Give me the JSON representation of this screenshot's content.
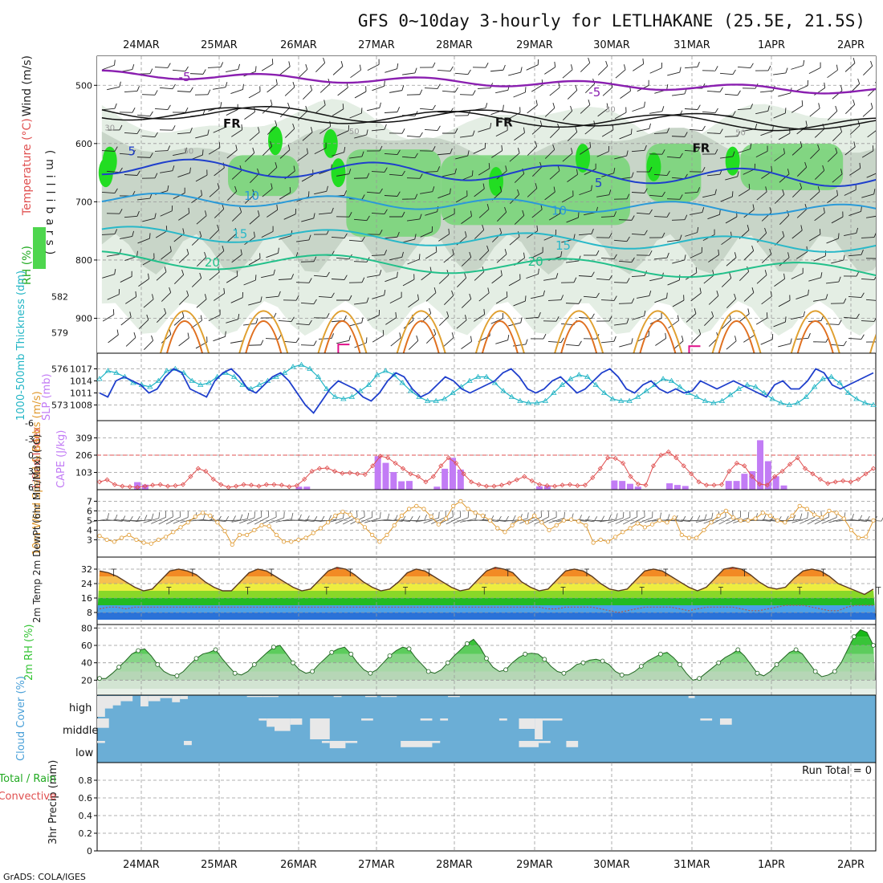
{
  "title": "GFS 0~10day 3-hourly for LETLHAKANE (25.5E, 21.5S)",
  "credit": "GrADS: COLA/IGES",
  "dates": [
    "24MAR",
    "25MAR",
    "26MAR",
    "27MAR",
    "28MAR",
    "29MAR",
    "30MAR",
    "31MAR",
    "1APR",
    "2APR"
  ],
  "colors": {
    "rh_green": "#22cc22",
    "wind_barb": "#222222",
    "slp": "#1f3fcc",
    "thickness": "#22b5c5",
    "lifted": "#e05050",
    "cape": "#c27cf5",
    "wind10": "#e09a30",
    "rh2m": "#35c435",
    "cloud_bg": "#6baed6",
    "cloud_bar": "#e8e8e8"
  },
  "chart_data": [
    {
      "panel": "upper-air",
      "type": "heatmap",
      "ylabel": "(millibars)",
      "y_ticks": [
        500,
        600,
        700,
        800,
        900
      ],
      "ylim": [
        960,
        450
      ],
      "legend_labels": [
        "Wind (m/s)",
        "Temperature (°C)",
        "RH (%)"
      ],
      "isotherm_labels": [
        {
          "label": "-5",
          "x": 1.55,
          "p": 486
        },
        {
          "label": "-5",
          "x": 6.75,
          "p": 512
        },
        {
          "label": "FR",
          "x": 2.15,
          "p": 566
        },
        {
          "label": "FR",
          "x": 5.6,
          "p": 564
        },
        {
          "label": "FR",
          "x": 8.1,
          "p": 608
        },
        {
          "label": "5",
          "x": 0.88,
          "p": 613
        },
        {
          "label": "5",
          "x": 6.8,
          "p": 668
        },
        {
          "label": "10",
          "x": 2.4,
          "p": 690
        },
        {
          "label": "10",
          "x": 6.3,
          "p": 715
        },
        {
          "label": "15",
          "x": 2.25,
          "p": 755
        },
        {
          "label": "15",
          "x": 6.35,
          "p": 775
        },
        {
          "label": "20",
          "x": 1.9,
          "p": 804
        },
        {
          "label": "20",
          "x": 6.0,
          "p": 803
        }
      ],
      "rh_contour_labels": [
        {
          "label": "30",
          "x": 0.6,
          "p": 572
        },
        {
          "label": "50",
          "x": 1.6,
          "p": 612
        },
        {
          "label": "50",
          "x": 3.7,
          "p": 578
        },
        {
          "label": "30",
          "x": 6.95,
          "p": 540
        },
        {
          "label": "50",
          "x": 8.6,
          "p": 580
        }
      ]
    },
    {
      "panel": "thickness-slp",
      "type": "line",
      "ylabel_left": "1000-500mb Thickness (dm)",
      "ylabel_right": "SLP (mb)",
      "y_ticks_left": [
        573,
        576,
        579,
        582
      ],
      "y_ticks_right": [
        1008,
        1011,
        1014,
        1017
      ],
      "series": [
        {
          "name": "1000-500mb Thickness (dm)",
          "values": [
            1014.5,
            1016.5,
            1016,
            1015,
            1013.5,
            1013,
            1012.5,
            1014,
            1016.5,
            1017,
            1016,
            1014,
            1013,
            1013.5,
            1015,
            1016,
            1015,
            1013,
            1012,
            1013,
            1014,
            1015,
            1016,
            1017.5,
            1018,
            1017,
            1015,
            1012,
            1010,
            1009.5,
            1010,
            1011.5,
            1013,
            1015.5,
            1016.5,
            1015.5,
            1013.5,
            1011.5,
            1010,
            1009,
            1009,
            1009.5,
            1011,
            1012.5,
            1014,
            1015,
            1015,
            1013.5,
            1011.5,
            1010,
            1009,
            1008.5,
            1008.5,
            1009,
            1011,
            1013,
            1014.5,
            1015.5,
            1015,
            1013,
            1011,
            1009.5,
            1009,
            1009,
            1010,
            1011.5,
            1013,
            1014.5,
            1014,
            1012.5,
            1011,
            1010,
            1009,
            1008.5,
            1009,
            1010.5,
            1012,
            1013,
            1012.5,
            1011,
            1009.5,
            1008.5,
            1008,
            1008.5,
            1010,
            1012.5,
            1014.5,
            1015,
            1013.5,
            1011,
            1009.5,
            1008.5,
            1008
          ]
        },
        {
          "name": "SLP (mb)",
          "values": [
            1011,
            1010,
            1014,
            1015,
            1014,
            1013,
            1011,
            1012,
            1015,
            1017,
            1016,
            1012,
            1011,
            1010,
            1014,
            1016,
            1017,
            1015,
            1012,
            1011,
            1013,
            1015,
            1016,
            1014,
            1011,
            1008,
            1006,
            1009,
            1012,
            1014,
            1013,
            1012,
            1010,
            1009,
            1011,
            1014,
            1016,
            1015,
            1012,
            1010,
            1011,
            1013,
            1015,
            1014,
            1012,
            1011,
            1012,
            1013,
            1014,
            1016,
            1017,
            1015,
            1012,
            1011,
            1012,
            1014,
            1015,
            1013,
            1011,
            1012,
            1014,
            1016,
            1017,
            1015,
            1012,
            1011,
            1013,
            1014,
            1012,
            1011,
            1012,
            1011,
            1011.5,
            1014,
            1013,
            1012,
            1013,
            1014,
            1013,
            1012,
            1011,
            1010,
            1013,
            1014,
            1012,
            1012,
            1014,
            1017,
            1016,
            1013,
            1012,
            1013,
            1014,
            1015,
            1016
          ]
        }
      ]
    },
    {
      "panel": "lifted-cape",
      "type": "bar",
      "ylabel_left": "Lifted Index",
      "ylabel_right": "CAPE (J/kg)",
      "y_ticks_left": [
        "-6",
        "-3",
        "0",
        "3",
        "6"
      ],
      "y_ticks_right": [
        "103",
        "206",
        "309"
      ],
      "lifted_index": [
        5,
        4.6,
        5.5,
        5.8,
        5.9,
        6,
        5.8,
        5.6,
        5.5,
        5.8,
        5.7,
        5.5,
        4,
        2.5,
        3,
        4.5,
        5.5,
        6,
        5.8,
        5.5,
        5.6,
        5.8,
        5.5,
        5.5,
        5.6,
        5.9,
        5.7,
        4.5,
        3,
        2.5,
        2.4,
        3,
        3.4,
        3.3,
        3.5,
        3.6,
        2,
        0.2,
        0.5,
        1.5,
        2.5,
        3.5,
        4,
        5,
        4,
        2,
        0.5,
        1.5,
        3.5,
        5,
        5.5,
        5.8,
        5.8,
        5.6,
        5.2,
        4.6,
        4,
        4.8,
        5.5,
        5.7,
        5.8,
        5.6,
        5.5,
        5.7,
        5.6,
        4.2,
        2.5,
        0.5,
        0.6,
        1.5,
        4,
        5.4,
        5.6,
        2,
        0,
        -0.6,
        0.5,
        2,
        3.5,
        5,
        5.6,
        5.6,
        5.5,
        3,
        1.5,
        2,
        4,
        5.4,
        5.6,
        4,
        3,
        1.7,
        0.5,
        2.5,
        3.5,
        4.5,
        5.3,
        5,
        4.8,
        5,
        4.5,
        3.5,
        2.5
      ],
      "cape": [
        {
          "x": 0.45,
          "v": 45
        },
        {
          "x": 0.55,
          "v": 30
        },
        {
          "x": 2.5,
          "v": 18
        },
        {
          "x": 2.6,
          "v": 18
        },
        {
          "x": 3.5,
          "v": 200
        },
        {
          "x": 3.6,
          "v": 160
        },
        {
          "x": 3.7,
          "v": 105
        },
        {
          "x": 3.8,
          "v": 50
        },
        {
          "x": 3.9,
          "v": 52
        },
        {
          "x": 4.25,
          "v": 18
        },
        {
          "x": 4.35,
          "v": 125
        },
        {
          "x": 4.45,
          "v": 190
        },
        {
          "x": 4.55,
          "v": 120
        },
        {
          "x": 5.55,
          "v": 20
        },
        {
          "x": 5.65,
          "v": 22
        },
        {
          "x": 6.5,
          "v": 55
        },
        {
          "x": 6.6,
          "v": 52
        },
        {
          "x": 6.7,
          "v": 35
        },
        {
          "x": 6.8,
          "v": 18
        },
        {
          "x": 7.2,
          "v": 38
        },
        {
          "x": 7.3,
          "v": 28
        },
        {
          "x": 7.4,
          "v": 22
        },
        {
          "x": 7.95,
          "v": 52
        },
        {
          "x": 8.05,
          "v": 52
        },
        {
          "x": 8.15,
          "v": 95
        },
        {
          "x": 8.25,
          "v": 110
        },
        {
          "x": 8.35,
          "v": 295
        },
        {
          "x": 8.45,
          "v": 170
        },
        {
          "x": 8.55,
          "v": 80
        },
        {
          "x": 8.65,
          "v": 25
        }
      ]
    },
    {
      "panel": "wind10m",
      "type": "line",
      "ylabel": "10m Wind Speed & Barbs (m/s)",
      "y_ticks": [
        3,
        4,
        5,
        6,
        7
      ],
      "values": [
        3.4,
        3,
        2.8,
        3.2,
        3.5,
        3,
        2.7,
        2.6,
        3,
        3.3,
        3.8,
        4.3,
        4.8,
        5.4,
        5.8,
        5.5,
        4.8,
        3.9,
        2.5,
        3.5,
        3.5,
        4,
        4.5,
        4.4,
        3.5,
        2.8,
        2.8,
        3,
        3.2,
        3.7,
        4.2,
        4.8,
        5.5,
        5.9,
        5.6,
        5,
        4.3,
        3.5,
        2.8,
        3.5,
        4.5,
        5.5,
        6.2,
        6.5,
        6.2,
        5.4,
        4.6,
        5.2,
        6.5,
        7,
        6.2,
        5.8,
        5.5,
        5,
        4.2,
        3.8,
        4.5,
        5.2,
        4.8,
        5.5,
        4.8,
        4,
        4.5,
        5,
        5.1,
        4.9,
        4.5,
        2.7,
        3,
        2.8,
        3.3,
        3.8,
        4.2,
        4.7,
        4.3,
        4.6,
        5,
        4.8,
        5.3,
        3.5,
        3.2,
        3.2,
        4,
        4.8,
        5.5,
        6,
        5.3,
        5,
        5,
        5.2,
        5.8,
        5.5,
        5,
        4.8,
        5.5,
        6.5,
        6.2,
        5.6,
        5.3,
        6,
        5.8,
        5.2,
        4,
        3.2,
        3.3,
        5
      ]
    },
    {
      "panel": "temp-dewpt",
      "type": "area",
      "ylabel": "2m Temp 2m DewPt (6hr Min/Max) (°C)",
      "y_ticks": [
        8,
        16,
        24,
        32
      ],
      "temperature": [
        31,
        30,
        28,
        25,
        22,
        20,
        21,
        26,
        31,
        32,
        31,
        29,
        25,
        22,
        20,
        20,
        25,
        30,
        32,
        31,
        28,
        25,
        22,
        20,
        21,
        26,
        31,
        33,
        32,
        29,
        25,
        22,
        20,
        21,
        25,
        30,
        32,
        31,
        28,
        25,
        22,
        20,
        21,
        26,
        31,
        33,
        32,
        30,
        25,
        22,
        20,
        21,
        26,
        31,
        32,
        31,
        28,
        24,
        21,
        20,
        21,
        26,
        31,
        32,
        31,
        28,
        25,
        22,
        20,
        22,
        27,
        32,
        33,
        32,
        29,
        25,
        22,
        21,
        22,
        27,
        31,
        32,
        31,
        28,
        24,
        22,
        20,
        18,
        21
      ],
      "dewpoint": [
        10,
        11,
        11,
        10,
        11,
        11,
        11,
        11,
        11,
        11,
        11,
        11,
        11,
        11,
        11,
        11,
        11,
        11,
        11,
        11,
        11,
        11,
        11,
        11,
        11,
        11,
        11,
        11,
        11,
        11,
        11,
        11,
        11,
        11,
        11,
        11,
        11,
        11,
        11,
        11,
        11,
        11,
        11,
        11,
        11,
        11,
        11,
        11,
        11,
        11,
        11,
        10,
        10,
        11,
        11,
        11,
        11,
        10,
        9,
        8,
        9,
        10,
        11,
        11,
        11,
        11,
        10,
        9,
        10,
        11,
        11,
        11,
        11,
        10,
        9,
        9,
        10,
        11,
        12,
        12,
        12,
        11,
        10,
        9,
        9,
        11,
        12,
        12,
        12
      ]
    },
    {
      "panel": "rh2m",
      "type": "area",
      "ylabel": "2m RH (%)",
      "y_ticks": [
        20,
        40,
        60,
        80
      ],
      "values": [
        22,
        22,
        28,
        35,
        42,
        50,
        54,
        56,
        48,
        38,
        30,
        26,
        25,
        30,
        38,
        45,
        50,
        52,
        55,
        45,
        36,
        28,
        26,
        30,
        38,
        45,
        52,
        58,
        60,
        50,
        40,
        32,
        28,
        30,
        38,
        45,
        52,
        56,
        58,
        50,
        40,
        32,
        28,
        32,
        40,
        48,
        54,
        58,
        56,
        46,
        38,
        30,
        28,
        32,
        40,
        48,
        55,
        62,
        67,
        58,
        45,
        35,
        30,
        32,
        40,
        46,
        50,
        51,
        50,
        44,
        36,
        30,
        28,
        32,
        38,
        40,
        43,
        44,
        42,
        38,
        30,
        26,
        26,
        30,
        36,
        42,
        46,
        50,
        52,
        46,
        38,
        28,
        20,
        22,
        28,
        34,
        40,
        46,
        50,
        55,
        48,
        38,
        28,
        25,
        30,
        38,
        45,
        52,
        55,
        50,
        40,
        30,
        24,
        26,
        30,
        40,
        55,
        70,
        78,
        75,
        60
      ]
    },
    {
      "panel": "cloud",
      "type": "bar",
      "ylabel": "Cloud Cover (%)",
      "levels": [
        "high",
        "middle",
        "low"
      ],
      "high": [
        {
          "x0": 0.0,
          "x1": 0.05,
          "v": 90
        },
        {
          "x0": 0.05,
          "x1": 0.15,
          "v": 40
        },
        {
          "x0": 0.15,
          "x1": 0.35,
          "v": 60
        },
        {
          "x0": 0.35,
          "x1": 0.45,
          "v": 100
        },
        {
          "x0": 0.45,
          "x1": 0.5,
          "v": 45
        },
        {
          "x0": 0.5,
          "x1": 0.6,
          "v": 55
        },
        {
          "x0": 0.6,
          "x1": 0.8,
          "v": 45
        },
        {
          "x0": 0.8,
          "x1": 0.95,
          "v": 25
        },
        {
          "x0": 1.05,
          "x1": 1.15,
          "v": 50
        },
        {
          "x0": 1.15,
          "x1": 1.3,
          "v": 25
        },
        {
          "x0": 1.3,
          "x1": 1.45,
          "v": 10
        },
        {
          "x0": 1.45,
          "x1": 1.55,
          "v": 30
        },
        {
          "x0": 1.55,
          "x1": 1.65,
          "v": 15
        },
        {
          "x0": 2.4,
          "x1": 2.6,
          "v": 5
        },
        {
          "x0": 2.6,
          "x1": 2.8,
          "v": 5
        },
        {
          "x0": 3.5,
          "x1": 3.6,
          "v": 5
        },
        {
          "x0": 3.9,
          "x1": 4.05,
          "v": 5
        },
        {
          "x0": 4.1,
          "x1": 4.3,
          "v": 5
        },
        {
          "x0": 4.95,
          "x1": 5.1,
          "v": 5
        },
        {
          "x0": 8.0,
          "x1": 8.08,
          "v": 10
        }
      ],
      "middle": [
        {
          "x0": 0.1,
          "x1": 0.25,
          "v": 45
        },
        {
          "x0": 0.45,
          "x1": 0.55,
          "v": 25
        },
        {
          "x0": 2.55,
          "x1": 2.65,
          "v": 10
        },
        {
          "x0": 2.65,
          "x1": 2.75,
          "v": 40
        },
        {
          "x0": 2.75,
          "x1": 2.95,
          "v": 60
        },
        {
          "x0": 2.95,
          "x1": 3.1,
          "v": 30
        },
        {
          "x0": 3.2,
          "x1": 3.45,
          "v": 100
        },
        {
          "x0": 3.85,
          "x1": 4.0,
          "v": 10
        },
        {
          "x0": 4.6,
          "x1": 4.75,
          "v": 10
        },
        {
          "x0": 4.85,
          "x1": 4.95,
          "v": 10
        },
        {
          "x0": 5.6,
          "x1": 5.7,
          "v": 10
        },
        {
          "x0": 5.85,
          "x1": 6.05,
          "v": 50
        },
        {
          "x0": 6.05,
          "x1": 6.15,
          "v": 100
        },
        {
          "x0": 6.15,
          "x1": 6.4,
          "v": 10
        },
        {
          "x0": 8.15,
          "x1": 8.3,
          "v": 10
        },
        {
          "x0": 8.4,
          "x1": 8.55,
          "v": 30
        }
      ],
      "low": [
        {
          "x0": 0.45,
          "x1": 0.55,
          "v": 10
        },
        {
          "x0": 1.6,
          "x1": 1.7,
          "v": 20
        },
        {
          "x0": 3.35,
          "x1": 3.45,
          "v": 10
        },
        {
          "x0": 3.45,
          "x1": 3.65,
          "v": 35
        },
        {
          "x0": 3.65,
          "x1": 3.8,
          "v": 10
        },
        {
          "x0": 4.35,
          "x1": 4.75,
          "v": 30
        },
        {
          "x0": 4.75,
          "x1": 4.85,
          "v": 10
        },
        {
          "x0": 5.85,
          "x1": 6.1,
          "v": 30
        },
        {
          "x0": 6.1,
          "x1": 6.25,
          "v": 10
        },
        {
          "x0": 6.45,
          "x1": 6.6,
          "v": 30
        }
      ]
    },
    {
      "panel": "precip",
      "type": "bar",
      "ylabel": "3hr Precip (mm)",
      "legend_labels": [
        "Total / Rain",
        "Convective"
      ],
      "y_ticks": [
        "0",
        "0.2",
        "0.4",
        "0.6",
        "0.8"
      ],
      "ylim": [
        0,
        1
      ],
      "run_total_label": "Run Total = 0",
      "values": []
    }
  ]
}
